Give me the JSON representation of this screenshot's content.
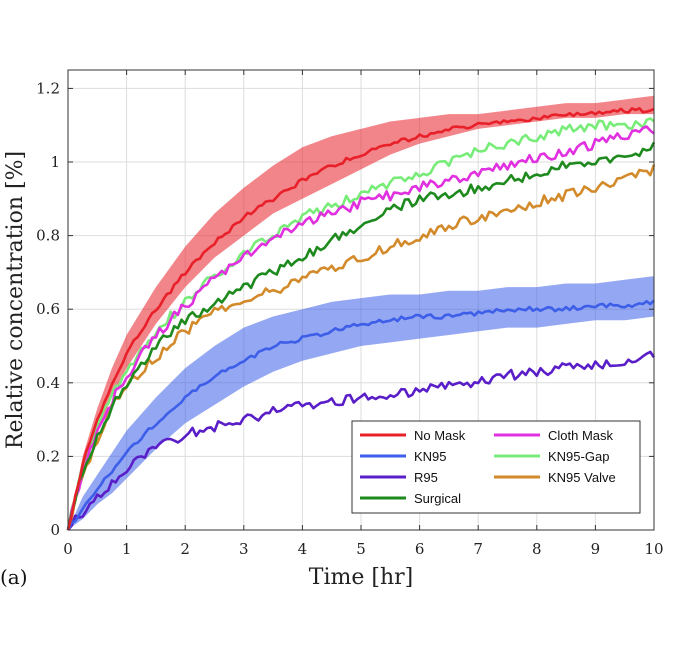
{
  "panel_label": "(a)",
  "chart_data": {
    "type": "line",
    "title": "",
    "xlabel": "Time [hr]",
    "ylabel": "Relative concentration [%]",
    "xlim": [
      0,
      10
    ],
    "ylim": [
      0,
      1.25
    ],
    "xticks": [
      0,
      1,
      2,
      3,
      4,
      5,
      6,
      7,
      8,
      9,
      10
    ],
    "yticks": [
      0,
      0.2,
      0.4,
      0.6,
      0.8,
      1,
      1.2
    ],
    "xtick_labels": [
      "0",
      "1",
      "2",
      "3",
      "4",
      "5",
      "6",
      "7",
      "8",
      "9",
      "10"
    ],
    "ytick_labels": [
      "0",
      "0.2",
      "0.4",
      "0.6",
      "0.8",
      "1",
      "1.2"
    ],
    "grid": true,
    "legend_position": "bottom-right",
    "x": [
      0,
      0.25,
      0.5,
      0.75,
      1,
      1.5,
      2,
      2.5,
      3,
      3.5,
      4,
      4.5,
      5,
      5.5,
      6,
      6.5,
      7,
      7.5,
      8,
      8.5,
      9,
      9.5,
      10
    ],
    "series": [
      {
        "name": "No Mask",
        "color": "#e8202a",
        "values": [
          0,
          0.18,
          0.3,
          0.4,
          0.48,
          0.6,
          0.7,
          0.78,
          0.85,
          0.9,
          0.95,
          0.99,
          1.02,
          1.05,
          1.07,
          1.09,
          1.1,
          1.11,
          1.12,
          1.13,
          1.13,
          1.14,
          1.14
        ],
        "band_lower": [
          0,
          0.16,
          0.27,
          0.36,
          0.44,
          0.56,
          0.66,
          0.74,
          0.8,
          0.86,
          0.9,
          0.94,
          0.98,
          1.02,
          1.05,
          1.07,
          1.09,
          1.1,
          1.11,
          1.12,
          1.12,
          1.13,
          1.13
        ],
        "band_upper": [
          0,
          0.2,
          0.33,
          0.44,
          0.53,
          0.66,
          0.77,
          0.86,
          0.93,
          0.99,
          1.04,
          1.07,
          1.09,
          1.11,
          1.12,
          1.13,
          1.13,
          1.14,
          1.15,
          1.16,
          1.16,
          1.17,
          1.18
        ]
      },
      {
        "name": "KN95",
        "color": "#3d5ee8",
        "values": [
          0,
          0.06,
          0.11,
          0.16,
          0.21,
          0.29,
          0.36,
          0.42,
          0.46,
          0.5,
          0.52,
          0.54,
          0.56,
          0.57,
          0.58,
          0.58,
          0.59,
          0.6,
          0.6,
          0.6,
          0.61,
          0.61,
          0.62
        ],
        "band_lower": [
          0,
          0.03,
          0.07,
          0.1,
          0.14,
          0.22,
          0.29,
          0.34,
          0.39,
          0.43,
          0.46,
          0.48,
          0.5,
          0.51,
          0.52,
          0.53,
          0.54,
          0.55,
          0.55,
          0.56,
          0.57,
          0.57,
          0.58
        ],
        "band_upper": [
          0,
          0.09,
          0.15,
          0.21,
          0.27,
          0.36,
          0.44,
          0.5,
          0.55,
          0.58,
          0.6,
          0.62,
          0.63,
          0.64,
          0.64,
          0.65,
          0.65,
          0.66,
          0.66,
          0.67,
          0.67,
          0.68,
          0.69
        ]
      },
      {
        "name": "R95",
        "color": "#5a1ec9",
        "values": [
          0,
          0.05,
          0.09,
          0.13,
          0.17,
          0.22,
          0.26,
          0.28,
          0.3,
          0.32,
          0.34,
          0.35,
          0.36,
          0.37,
          0.38,
          0.39,
          0.4,
          0.42,
          0.43,
          0.44,
          0.45,
          0.46,
          0.48
        ]
      },
      {
        "name": "Surgical",
        "color": "#1e8a1e",
        "values": [
          0,
          0.16,
          0.25,
          0.33,
          0.4,
          0.5,
          0.57,
          0.61,
          0.66,
          0.7,
          0.74,
          0.79,
          0.83,
          0.87,
          0.9,
          0.91,
          0.93,
          0.95,
          0.97,
          0.99,
          1.0,
          1.02,
          1.04
        ]
      },
      {
        "name": "Cloth Mask",
        "color": "#e030e0",
        "values": [
          0,
          0.16,
          0.27,
          0.35,
          0.42,
          0.53,
          0.61,
          0.68,
          0.74,
          0.79,
          0.83,
          0.86,
          0.89,
          0.91,
          0.93,
          0.95,
          0.97,
          0.99,
          1.01,
          1.03,
          1.05,
          1.07,
          1.09
        ]
      },
      {
        "name": "KN95-Gap",
        "color": "#78ec78",
        "values": [
          0,
          0.18,
          0.28,
          0.36,
          0.43,
          0.54,
          0.62,
          0.69,
          0.75,
          0.8,
          0.85,
          0.88,
          0.91,
          0.94,
          0.97,
          1.0,
          1.03,
          1.05,
          1.07,
          1.09,
          1.1,
          1.1,
          1.11
        ]
      },
      {
        "name": "KN95 Valve",
        "color": "#d28a2a",
        "values": [
          0,
          0.15,
          0.25,
          0.33,
          0.39,
          0.47,
          0.54,
          0.59,
          0.62,
          0.65,
          0.68,
          0.71,
          0.74,
          0.77,
          0.8,
          0.83,
          0.85,
          0.87,
          0.89,
          0.91,
          0.93,
          0.95,
          0.98
        ]
      }
    ]
  }
}
